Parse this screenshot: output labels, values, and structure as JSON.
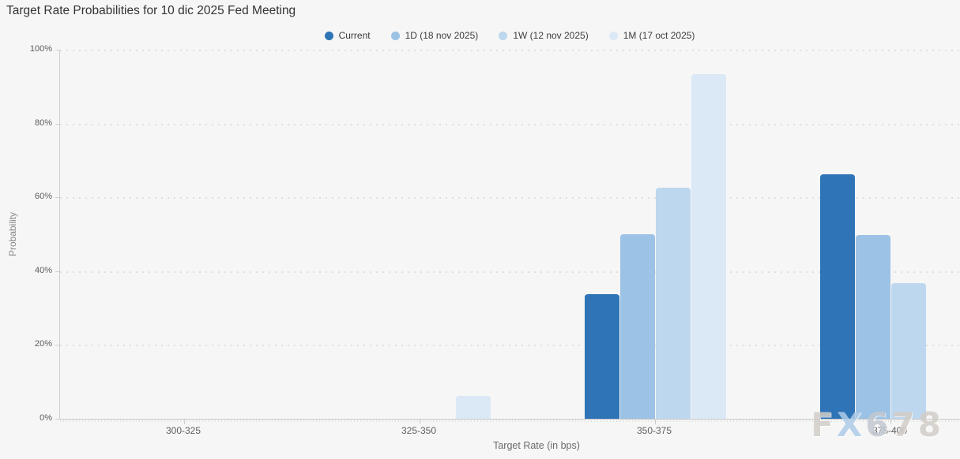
{
  "chart_data": {
    "type": "bar",
    "title": "Target Rate Probabilities for 10 dic 2025 Fed Meeting",
    "categories": [
      "300-325",
      "325-350",
      "350-375",
      "375-400"
    ],
    "series": [
      {
        "name": "Current",
        "color": "#2e74b6",
        "values": [
          0,
          0,
          33.7,
          66.3
        ]
      },
      {
        "name": "1D (18 nov 2025)",
        "color": "#9cc2e5",
        "values": [
          0,
          0,
          50.1,
          49.8
        ]
      },
      {
        "name": "1W (12 nov 2025)",
        "color": "#bdd7ee",
        "values": [
          0,
          0,
          62.5,
          36.8
        ]
      },
      {
        "name": "1M (17 oct 2025)",
        "color": "#dbe8f6",
        "values": [
          0,
          6.1,
          93.3,
          0
        ]
      }
    ],
    "xlabel": "Target Rate (in bps)",
    "ylabel": "Probability",
    "ylim": [
      0,
      100
    ],
    "yticks": [
      "0%",
      "20%",
      "40%",
      "60%",
      "80%",
      "100%"
    ],
    "grid": "dotted-horizontal",
    "legend_position": "top-center"
  },
  "watermark": "FX678",
  "colors": {
    "background": "#f6f6f7",
    "axis": "#c9c9c9",
    "grid": "#dfdfdf",
    "tick_text": "#5c5c5c",
    "title_text": "#333333",
    "legend_text": "#3d3d3d"
  }
}
